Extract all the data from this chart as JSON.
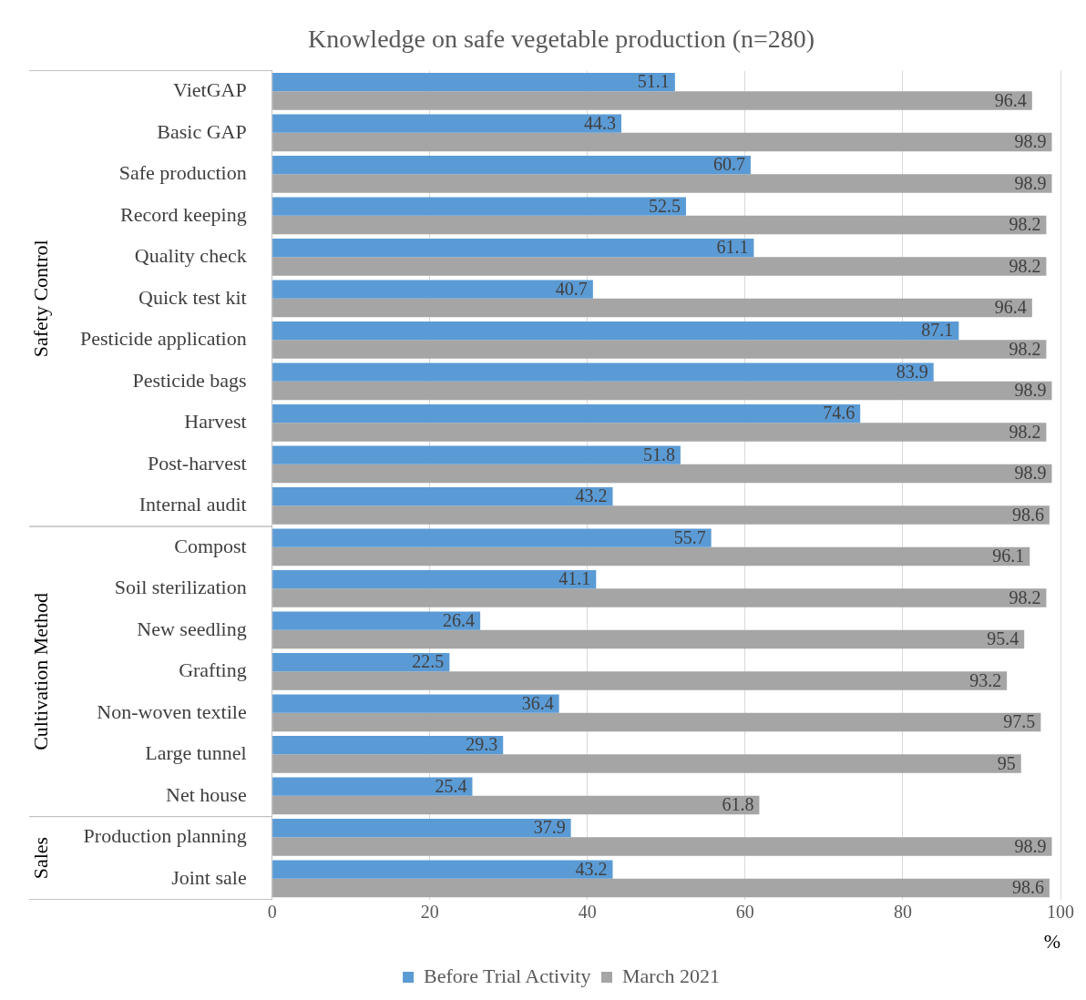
{
  "chart_data": {
    "type": "bar",
    "orientation": "horizontal",
    "title": "Knowledge on safe vegetable production (n=280)",
    "xlabel": "%",
    "categories": [
      "VietGAP",
      "Basic GAP",
      "Safe production",
      "Record keeping",
      "Quality check",
      "Quick test kit",
      "Pesticide application",
      "Pesticide bags",
      "Harvest",
      "Post-harvest",
      "Internal audit",
      "Compost",
      "Soil sterilization",
      "New seedling",
      "Grafting",
      "Non-woven textile",
      "Large tunnel",
      "Net house",
      "Production planning",
      "Joint sale"
    ],
    "series": [
      {
        "name": "Before Trial Activity",
        "color": "#5b9bd5",
        "values": [
          51.1,
          44.3,
          60.7,
          52.5,
          61.1,
          40.7,
          87.1,
          83.9,
          74.6,
          51.8,
          43.2,
          55.7,
          41.1,
          26.4,
          22.5,
          36.4,
          29.3,
          25.4,
          37.9,
          43.2
        ]
      },
      {
        "name": "March 2021",
        "color": "#a5a5a5",
        "values": [
          96.4,
          98.9,
          98.9,
          98.2,
          98.2,
          96.4,
          98.2,
          98.9,
          98.2,
          98.9,
          98.6,
          96.1,
          98.2,
          95.4,
          93.2,
          97.5,
          95,
          61.8,
          98.9,
          98.6
        ]
      }
    ],
    "xlim": [
      0,
      100
    ],
    "xticks": [
      0,
      20,
      40,
      60,
      80,
      100
    ],
    "grid": "x",
    "legend": "bottom",
    "data_labels": true,
    "annotations": [
      "Safety Control",
      "Cultivation Method",
      "Sales"
    ]
  }
}
